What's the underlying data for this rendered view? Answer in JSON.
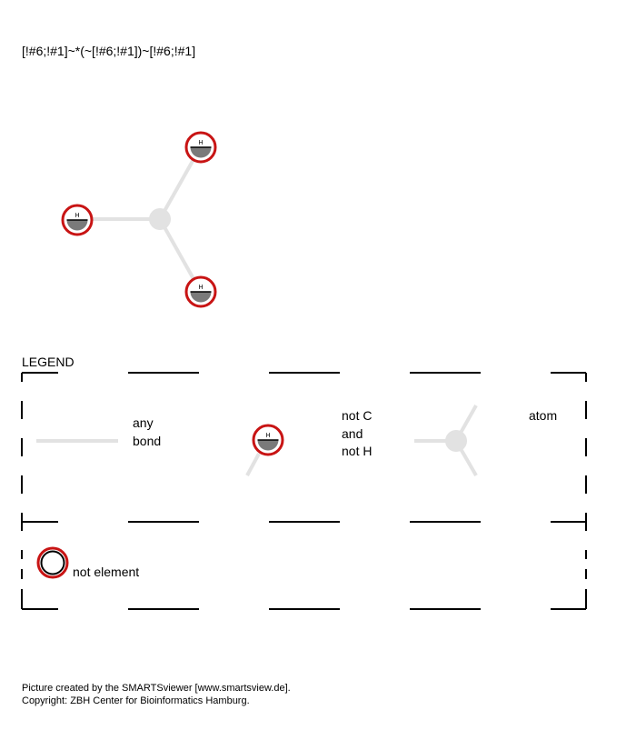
{
  "smarts": "[!#6;!#1]~*(~[!#6;!#1])~[!#6;!#1]",
  "molecule": {
    "atoms": [
      {
        "id": "center",
        "type": "any-atom"
      },
      {
        "id": "top",
        "type": "not-element",
        "label": "H"
      },
      {
        "id": "left",
        "type": "not-element",
        "label": "H"
      },
      {
        "id": "bottom",
        "type": "not-element",
        "label": "H"
      }
    ],
    "bonds": [
      {
        "from": "center",
        "to": "top",
        "type": "any"
      },
      {
        "from": "center",
        "to": "left",
        "type": "any"
      },
      {
        "from": "center",
        "to": "bottom",
        "type": "any"
      }
    ]
  },
  "legend": {
    "title": "LEGEND",
    "any_bond": {
      "line1": "any",
      "line2": "bond"
    },
    "not_c_not_h": {
      "line1": "not C",
      "line2": "and",
      "line3": "not H",
      "atom_label": "H"
    },
    "atom": {
      "label": "atom"
    },
    "not_element": {
      "label": "not element"
    }
  },
  "footer": {
    "line1": "Picture created by the SMARTSviewer [www.smartsview.de].",
    "line2": "Copyright: ZBH Center for Bioinformatics Hamburg."
  },
  "colors": {
    "bond": "#e2e2e2",
    "any_atom": "#e2e2e2",
    "not_ring": "#c81414",
    "shade": "#7a7a7a",
    "frame": "#000000"
  }
}
